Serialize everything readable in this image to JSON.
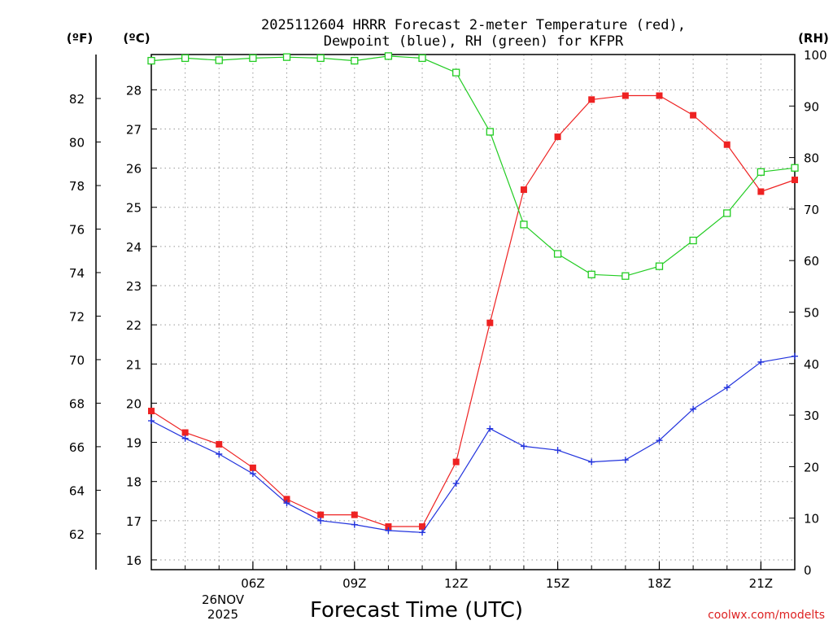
{
  "chart_data": {
    "type": "line",
    "title_line1": "2025112604 HRRR Forecast 2-meter Temperature (red),",
    "title_line2": "Dewpoint (blue), RH (green) for KFPR",
    "left_outer_axis_label": "(ºF)",
    "left_inner_axis_label": "(ºC)",
    "right_axis_label": "(RH)",
    "xlabel": "Forecast Time (UTC)",
    "date_label_line1": "26NOV",
    "date_label_line2": "2025",
    "watermark": "coolwx.com/modelts",
    "x_range_hours": [
      3,
      22
    ],
    "x_ticks": [
      {
        "hour": 6,
        "label": "06Z"
      },
      {
        "hour": 9,
        "label": "09Z"
      },
      {
        "hour": 12,
        "label": "12Z"
      },
      {
        "hour": 15,
        "label": "15Z"
      },
      {
        "hour": 18,
        "label": "18Z"
      },
      {
        "hour": 21,
        "label": "21Z"
      }
    ],
    "celsius_range": [
      15.75,
      28.9
    ],
    "celsius_ticks": [
      16,
      17,
      18,
      19,
      20,
      21,
      22,
      23,
      24,
      25,
      26,
      27,
      28
    ],
    "fahrenheit_ticks": [
      62,
      64,
      66,
      68,
      70,
      72,
      74,
      76,
      78,
      80,
      82
    ],
    "rh_range": [
      0,
      100
    ],
    "rh_ticks": [
      0,
      10,
      20,
      30,
      40,
      50,
      60,
      70,
      80,
      90,
      100
    ],
    "hours": [
      3,
      4,
      5,
      6,
      7,
      8,
      9,
      10,
      11,
      12,
      13,
      14,
      15,
      16,
      17,
      18,
      19,
      20,
      21,
      22
    ],
    "series": [
      {
        "name": "Temperature",
        "unit": "C",
        "color": "#ee2222",
        "marker": "filled-square",
        "values": [
          19.8,
          19.25,
          18.95,
          18.35,
          17.55,
          17.15,
          17.15,
          16.85,
          16.85,
          18.5,
          22.05,
          25.45,
          26.8,
          27.75,
          27.85,
          27.85,
          27.35,
          26.6,
          25.4,
          25.7
        ]
      },
      {
        "name": "Dewpoint",
        "unit": "C",
        "color": "#2233dd",
        "marker": "plus",
        "values": [
          19.55,
          19.1,
          18.7,
          18.2,
          17.45,
          17.0,
          16.9,
          16.75,
          16.7,
          17.95,
          19.35,
          18.9,
          18.8,
          18.5,
          18.55,
          19.05,
          19.85,
          20.4,
          21.05,
          21.2
        ]
      },
      {
        "name": "RH",
        "unit": "%",
        "color": "#22cc22",
        "marker": "open-square",
        "values": [
          98.8,
          99.3,
          98.9,
          99.3,
          99.5,
          99.3,
          98.8,
          99.7,
          99.3,
          96.5,
          85.0,
          67.0,
          61.3,
          57.3,
          57.0,
          58.9,
          63.9,
          69.2,
          77.2,
          78.0
        ]
      }
    ]
  }
}
